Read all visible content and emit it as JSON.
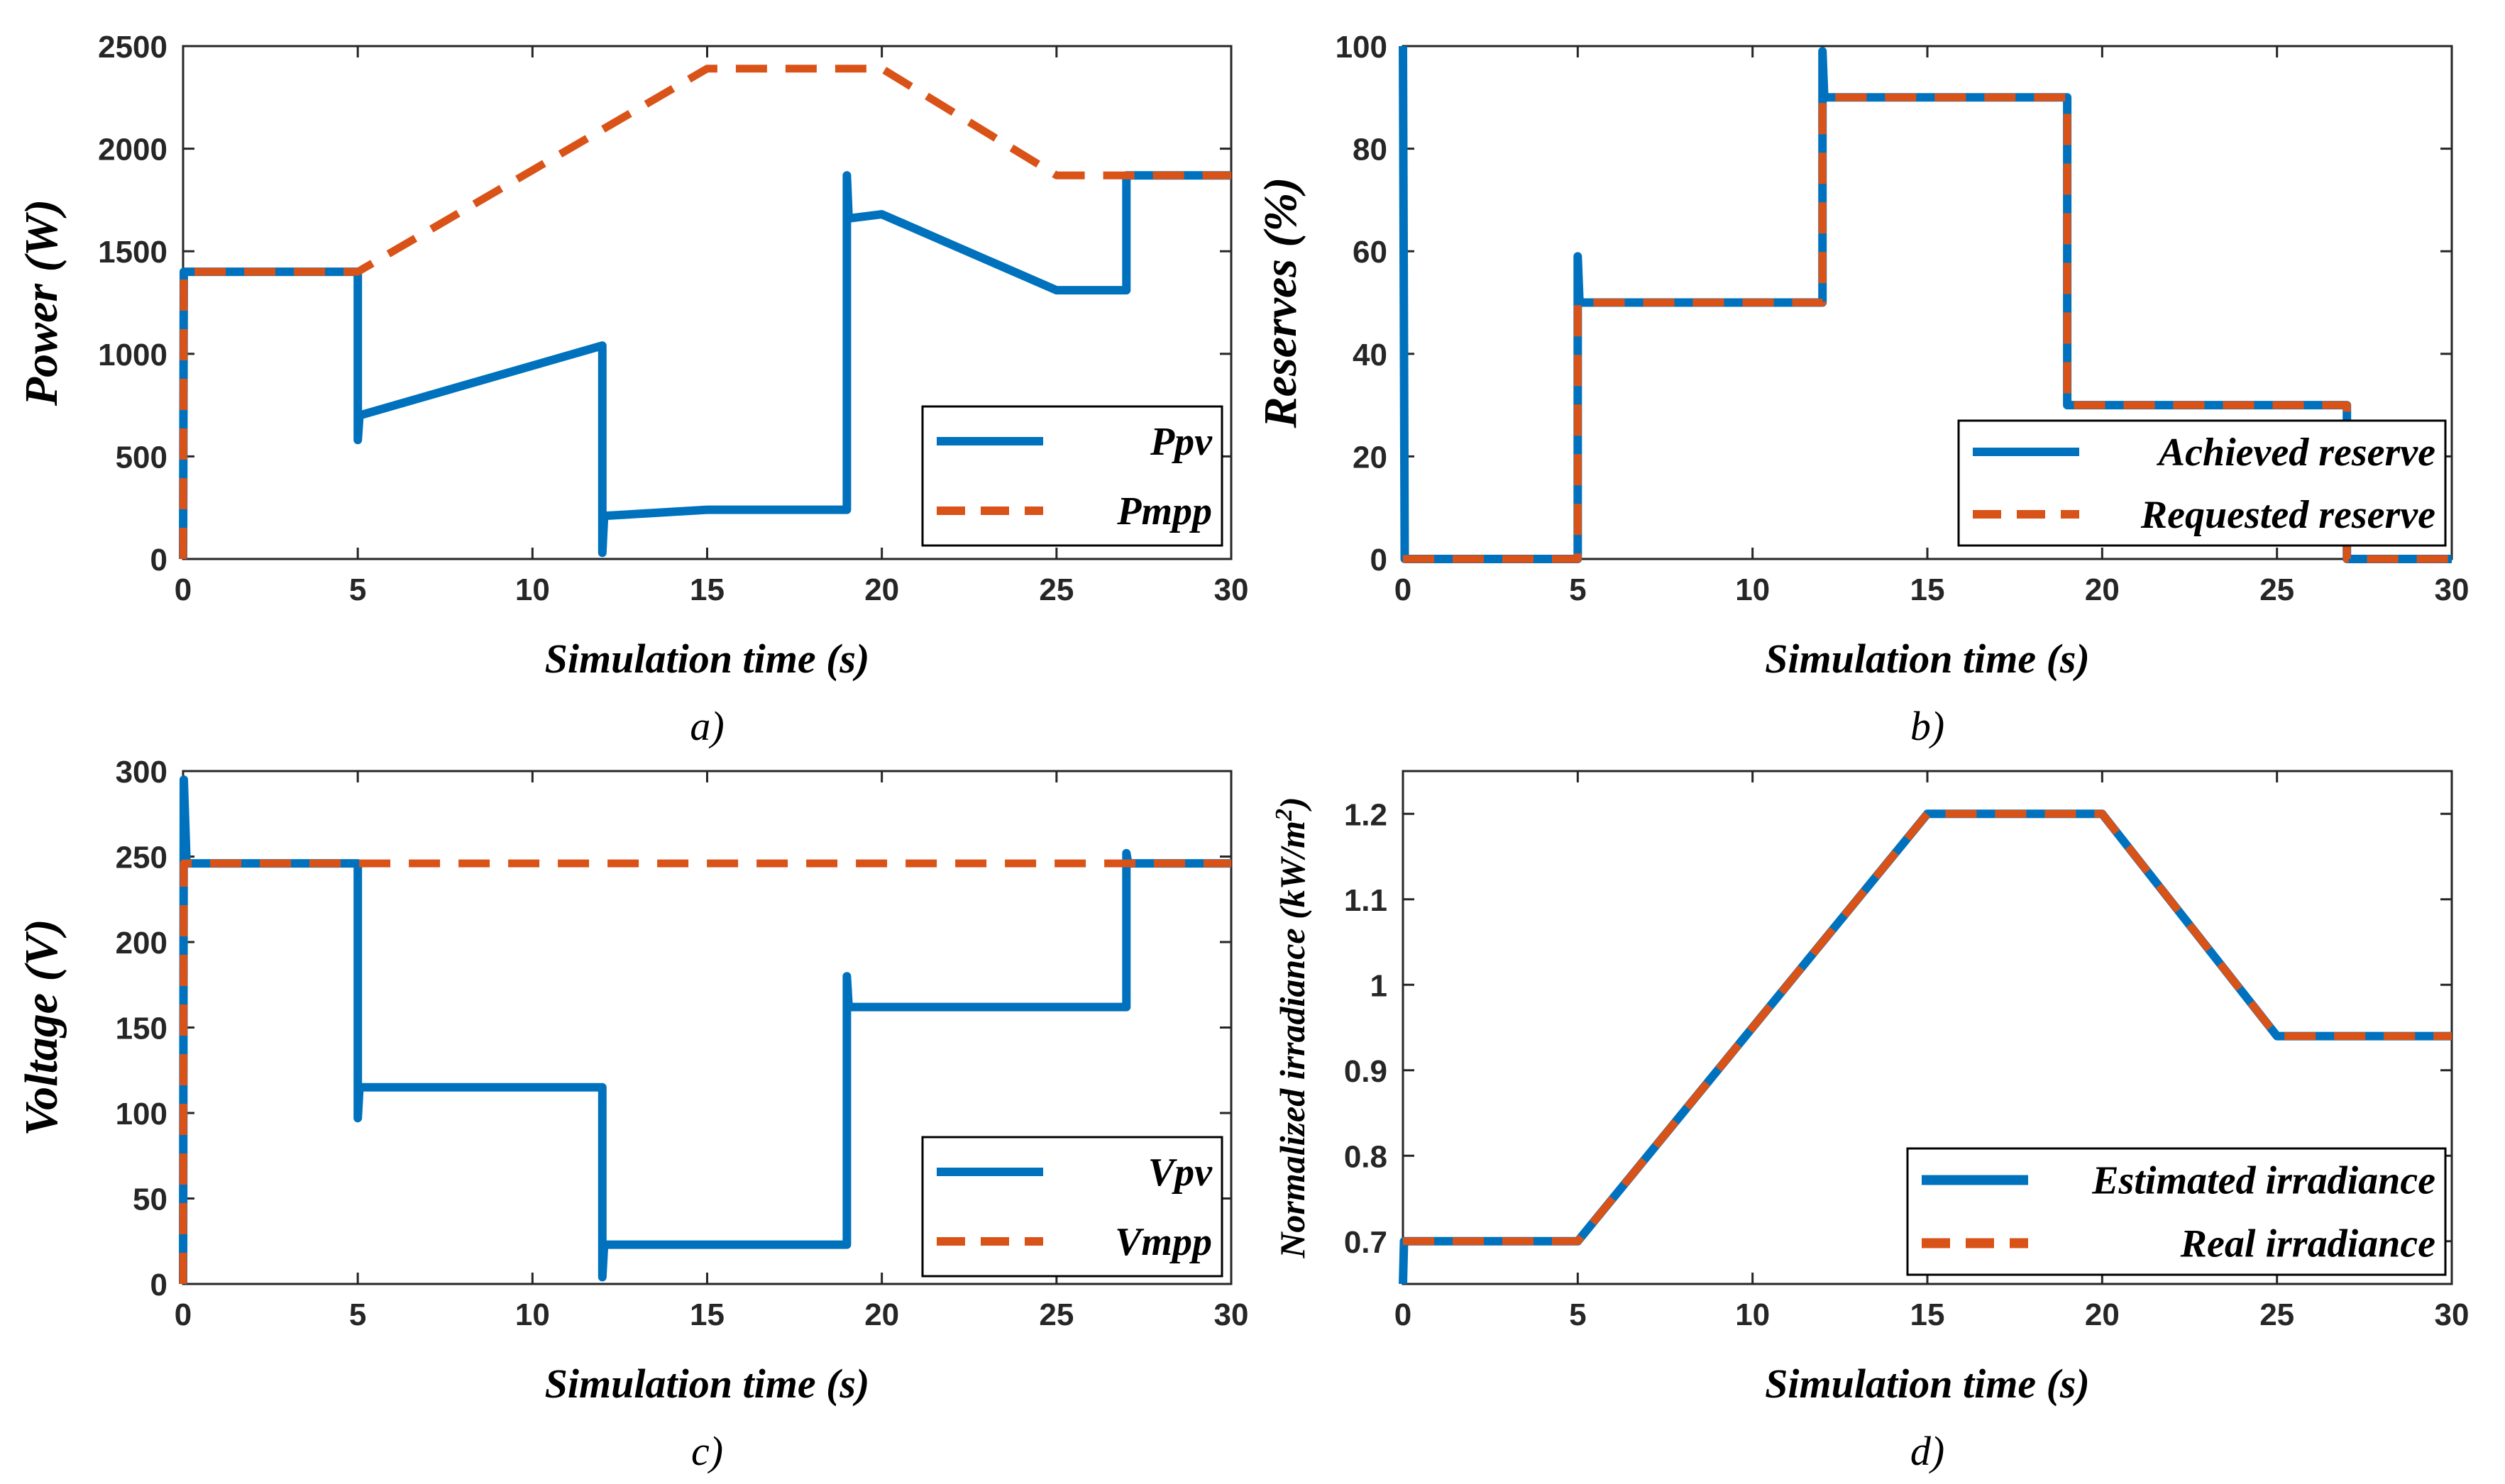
{
  "colors": {
    "blue": "#0072BD",
    "orange": "#D95319"
  },
  "chart_data": [
    {
      "id": "a",
      "type": "line",
      "caption": "a)",
      "xlabel": "Simulation time (s)",
      "ylabel": "Power (W)",
      "xlim": [
        0,
        30
      ],
      "ylim": [
        0,
        2500
      ],
      "xticks": [
        0,
        5,
        10,
        15,
        20,
        25,
        30
      ],
      "yticks": [
        0,
        500,
        1000,
        1500,
        2000,
        2500
      ],
      "legend_position": "bottom-right",
      "series": [
        {
          "name": "Ppv",
          "style": "solid",
          "color": "#0072BD",
          "points": [
            [
              0,
              0
            ],
            [
              0.02,
              1400
            ],
            [
              5,
              1400
            ],
            [
              5,
              580
            ],
            [
              5.05,
              700
            ],
            [
              12,
              1040
            ],
            [
              12,
              30
            ],
            [
              12.05,
              210
            ],
            [
              15,
              240
            ],
            [
              19,
              240
            ],
            [
              19,
              1870
            ],
            [
              19.05,
              1660
            ],
            [
              20,
              1680
            ],
            [
              25,
              1310
            ],
            [
              27,
              1310
            ],
            [
              27,
              1870
            ],
            [
              30,
              1870
            ]
          ]
        },
        {
          "name": "Pmpp",
          "style": "dashed",
          "color": "#D95319",
          "points": [
            [
              0,
              0
            ],
            [
              0.02,
              1400
            ],
            [
              5,
              1400
            ],
            [
              15,
              2390
            ],
            [
              20,
              2390
            ],
            [
              25,
              1870
            ],
            [
              30,
              1870
            ]
          ]
        }
      ]
    },
    {
      "id": "b",
      "type": "line",
      "caption": "b)",
      "xlabel": "Simulation time (s)",
      "ylabel": "Reserves (%)",
      "xlim": [
        0,
        30
      ],
      "ylim": [
        0,
        100
      ],
      "xticks": [
        0,
        5,
        10,
        15,
        20,
        25,
        30
      ],
      "yticks": [
        0,
        20,
        40,
        60,
        80,
        100
      ],
      "legend_position": "bottom-right",
      "series": [
        {
          "name": "Achieved reserve",
          "style": "solid",
          "color": "#0072BD",
          "points": [
            [
              0,
              100
            ],
            [
              0.05,
              0
            ],
            [
              5,
              0
            ],
            [
              5,
              59
            ],
            [
              5.05,
              50
            ],
            [
              12,
              50
            ],
            [
              12,
              99
            ],
            [
              12.05,
              90
            ],
            [
              19,
              90
            ],
            [
              19,
              30
            ],
            [
              27,
              30
            ],
            [
              27,
              0
            ],
            [
              30,
              0
            ]
          ]
        },
        {
          "name": "Requested reserve",
          "style": "dashed",
          "color": "#D95319",
          "points": [
            [
              0,
              0
            ],
            [
              5,
              0
            ],
            [
              5,
              50
            ],
            [
              12,
              50
            ],
            [
              12,
              90
            ],
            [
              19,
              90
            ],
            [
              19,
              30
            ],
            [
              27,
              30
            ],
            [
              27,
              0
            ],
            [
              30,
              0
            ]
          ]
        }
      ]
    },
    {
      "id": "c",
      "type": "line",
      "caption": "c)",
      "xlabel": "Simulation time (s)",
      "ylabel": "Voltage (V)",
      "xlim": [
        0,
        30
      ],
      "ylim": [
        0,
        300
      ],
      "xticks": [
        0,
        5,
        10,
        15,
        20,
        25,
        30
      ],
      "yticks": [
        0,
        50,
        100,
        150,
        200,
        250,
        300
      ],
      "legend_position": "bottom-right",
      "series": [
        {
          "name": "Vpv",
          "style": "solid",
          "color": "#0072BD",
          "points": [
            [
              0,
              0
            ],
            [
              0.02,
              295
            ],
            [
              0.1,
              246
            ],
            [
              5,
              246
            ],
            [
              5,
              97
            ],
            [
              5.05,
              115
            ],
            [
              12,
              115
            ],
            [
              12,
              4
            ],
            [
              12.05,
              23
            ],
            [
              19,
              23
            ],
            [
              19,
              180
            ],
            [
              19.05,
              162
            ],
            [
              27,
              162
            ],
            [
              27,
              252
            ],
            [
              27.05,
              246
            ],
            [
              30,
              246
            ]
          ]
        },
        {
          "name": "Vmpp",
          "style": "dashed",
          "color": "#D95319",
          "points": [
            [
              0,
              0
            ],
            [
              0.02,
              246
            ],
            [
              30,
              246
            ]
          ]
        }
      ]
    },
    {
      "id": "d",
      "type": "line",
      "caption": "d)",
      "xlabel": "Simulation time (s)",
      "ylabel": "Normalized irradiance (kW/m2)",
      "ylabel_text": "Normalized irradiance (kW/m",
      "ylabel_sup": "2",
      "ylabel_end": ")",
      "xlim": [
        0,
        30
      ],
      "ylim": [
        0.65,
        1.25
      ],
      "xticks": [
        0,
        5,
        10,
        15,
        20,
        25,
        30
      ],
      "yticks": [
        0.7,
        0.8,
        0.9,
        1,
        1.1,
        1.2
      ],
      "ytick_labels": [
        "0.7",
        "0.8",
        "0.9",
        "1",
        "1.1",
        "1.2"
      ],
      "legend_position": "bottom-right",
      "series": [
        {
          "name": "Estimated irradiance",
          "style": "solid",
          "color": "#0072BD",
          "points": [
            [
              0,
              0.65
            ],
            [
              0.03,
              0.7
            ],
            [
              5,
              0.7
            ],
            [
              15,
              1.2
            ],
            [
              20,
              1.2
            ],
            [
              25,
              0.94
            ],
            [
              30,
              0.94
            ]
          ]
        },
        {
          "name": "Real irradiance",
          "style": "dashed",
          "color": "#D95319",
          "points": [
            [
              0,
              0.7
            ],
            [
              5,
              0.7
            ],
            [
              15,
              1.2
            ],
            [
              20,
              1.2
            ],
            [
              25,
              0.94
            ],
            [
              30,
              0.94
            ]
          ]
        }
      ]
    }
  ]
}
